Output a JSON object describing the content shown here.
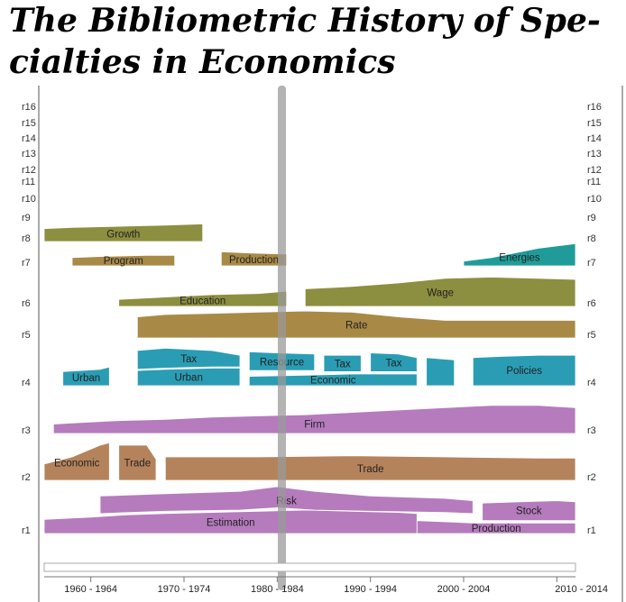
{
  "title": "The Bibliometric History of Specialties in Economics",
  "title_lines": [
    "The Bibliometric History of Spe-",
    "cialties in Economics"
  ],
  "colors": {
    "purple": "#b57bbd",
    "brown": "#b5835b",
    "olive": "#8c8f3f",
    "teal": "#2a9db4",
    "tealdark": "#1f9c9a",
    "green": "#4f9a57",
    "pink": "#c06fae",
    "gold": "#a88946",
    "axis": "#777777",
    "slider": "#999999"
  },
  "chart_data": {
    "type": "area",
    "xlabel": "",
    "ylabel": "",
    "x_ticks": [
      "1960 - 1964",
      "1970 - 1974",
      "1980 - 1984",
      "1990 - 1994",
      "2000 - 2004",
      "2010 - 2014"
    ],
    "x_range": [
      1957,
      2014
    ],
    "selected_period": "1980 - 1984",
    "row_labels": [
      "r1",
      "r2",
      "r3",
      "r4",
      "r5",
      "r6",
      "r7",
      "r8",
      "r9",
      "r10",
      "r11",
      "r12",
      "r13",
      "r14",
      "r15",
      "r16"
    ],
    "series": [
      {
        "row": "r1",
        "name": "Estimation",
        "color": "purple",
        "x": [
          1957,
          1962,
          1966,
          1970,
          1975,
          1980,
          1985,
          1990,
          1995,
          1997
        ],
        "top": [
          0.6,
          0.7,
          0.8,
          0.85,
          0.9,
          0.95,
          1.0,
          0.95,
          0.9,
          0.85
        ],
        "bottom": [
          0,
          0,
          0,
          0,
          0,
          0,
          0,
          0,
          0,
          0
        ]
      },
      {
        "row": "r1",
        "name": "Risk",
        "color": "purple",
        "x": [
          1963,
          1970,
          1978,
          1982,
          1986,
          1992,
          2000,
          2003
        ],
        "top": [
          1.6,
          1.7,
          1.8,
          2.0,
          1.8,
          1.6,
          1.5,
          1.4
        ],
        "bottom": [
          0.85,
          0.95,
          1.0,
          1.1,
          1.0,
          0.95,
          0.9,
          0.85
        ]
      },
      {
        "row": "r1",
        "name": "Production",
        "color": "purple",
        "x": [
          1997,
          2000,
          2003,
          2010,
          2014
        ],
        "top": [
          0.55,
          0.5,
          0.45,
          0.45,
          0.45
        ],
        "bottom": [
          0.0,
          0.0,
          0.0,
          0.0,
          0.0
        ]
      },
      {
        "row": "r1",
        "name": "Stock",
        "color": "purple",
        "x": [
          2004,
          2008,
          2012,
          2014
        ],
        "top": [
          1.3,
          1.35,
          1.4,
          1.35
        ],
        "bottom": [
          0.55,
          0.55,
          0.55,
          0.55
        ]
      },
      {
        "row": "r2",
        "name": "Economic",
        "color": "brown",
        "x": [
          1957,
          1960,
          1963,
          1964
        ],
        "top": [
          0.7,
          1.0,
          1.5,
          1.6
        ],
        "bottom": [
          0,
          0,
          0,
          0
        ]
      },
      {
        "row": "r2",
        "name": "Trade",
        "color": "brown",
        "x": [
          1965,
          1968,
          1969
        ],
        "top": [
          1.5,
          1.5,
          0.9
        ],
        "bottom": [
          0,
          0,
          0
        ]
      },
      {
        "row": "r2",
        "name": "Trade",
        "color": "brown",
        "x": [
          1970,
          1980,
          1990,
          2000,
          2010,
          2014
        ],
        "top": [
          1.0,
          1.0,
          1.05,
          1.0,
          0.95,
          0.95
        ],
        "bottom": [
          0,
          0,
          0,
          0,
          0,
          0
        ]
      },
      {
        "row": "r3",
        "name": "Firm",
        "color": "purple",
        "x": [
          1958,
          1960,
          1965,
          1970,
          1975,
          1980,
          1985,
          1990,
          1995,
          2000,
          2005,
          2010,
          2014
        ],
        "top": [
          0.4,
          0.45,
          0.55,
          0.6,
          0.7,
          0.75,
          0.8,
          0.9,
          1.0,
          1.1,
          1.2,
          1.2,
          1.1
        ],
        "bottom": [
          0,
          0,
          0,
          0,
          0,
          0,
          0,
          0,
          0,
          0,
          0,
          0,
          0
        ]
      },
      {
        "row": "r4",
        "name": "Urban",
        "color": "teal",
        "x": [
          1959,
          1963,
          1964
        ],
        "top": [
          0.6,
          0.7,
          0.8
        ],
        "bottom": [
          0,
          0,
          0
        ]
      },
      {
        "row": "r4",
        "name": "Tax",
        "color": "teal",
        "x": [
          1967,
          1970,
          1975,
          1978
        ],
        "top": [
          1.5,
          1.6,
          1.5,
          1.3
        ],
        "bottom": [
          0.7,
          0.75,
          0.8,
          0.8
        ]
      },
      {
        "row": "r4",
        "name": "Urban",
        "color": "teal",
        "x": [
          1967,
          1970,
          1975,
          1978
        ],
        "top": [
          0.65,
          0.7,
          0.75,
          0.75
        ],
        "bottom": [
          0,
          0,
          0,
          0
        ]
      },
      {
        "row": "r4",
        "name": "Resource",
        "color": "teal",
        "x": [
          1979,
          1982,
          1986
        ],
        "top": [
          1.45,
          1.4,
          1.35
        ],
        "bottom": [
          0.65,
          0.65,
          0.65
        ]
      },
      {
        "row": "r4",
        "name": "Economic",
        "color": "teal",
        "x": [
          1979,
          1985,
          1990,
          1995,
          1997
        ],
        "top": [
          0.4,
          0.45,
          0.5,
          0.5,
          0.5
        ],
        "bottom": [
          0,
          0,
          0,
          0,
          0
        ]
      },
      {
        "row": "r4",
        "name": "Tax",
        "color": "teal",
        "x": [
          1987,
          1991
        ],
        "top": [
          1.3,
          1.3
        ],
        "bottom": [
          0.6,
          0.6
        ]
      },
      {
        "row": "r4",
        "name": "Tax",
        "color": "teal",
        "x": [
          1992,
          1995,
          1997
        ],
        "top": [
          1.4,
          1.35,
          1.2
        ],
        "bottom": [
          0.6,
          0.6,
          0.6
        ]
      },
      {
        "row": "r4",
        "name": "",
        "color": "teal",
        "x": [
          1998,
          2001
        ],
        "top": [
          1.2,
          1.1
        ],
        "bottom": [
          0,
          0
        ]
      },
      {
        "row": "r4",
        "name": "Policies",
        "color": "teal",
        "x": [
          2003,
          2006,
          2010,
          2014
        ],
        "top": [
          1.2,
          1.25,
          1.3,
          1.3
        ],
        "bottom": [
          0,
          0,
          0,
          0
        ]
      },
      {
        "row": "r5",
        "name": "Rate",
        "color": "gold",
        "x": [
          1967,
          1970,
          1975,
          1980,
          1985,
          1990,
          1995,
          2000,
          2005,
          2010,
          2014
        ],
        "top": [
          0.9,
          1.0,
          1.05,
          1.1,
          1.15,
          1.1,
          0.9,
          0.75,
          0.75,
          0.75,
          0.75
        ],
        "bottom": [
          0,
          0,
          0,
          0,
          0,
          0,
          0,
          0,
          0,
          0,
          0
        ]
      },
      {
        "row": "r6",
        "name": "Education",
        "color": "olive",
        "x": [
          1965,
          1970,
          1975,
          1980,
          1983
        ],
        "top": [
          0.3,
          0.4,
          0.5,
          0.55,
          0.65
        ],
        "bottom": [
          0,
          0,
          0,
          0,
          0
        ]
      },
      {
        "row": "r6",
        "name": "Wage",
        "color": "olive",
        "x": [
          1985,
          1990,
          1995,
          2000,
          2005,
          2010,
          2014
        ],
        "top": [
          0.75,
          0.85,
          1.0,
          1.2,
          1.25,
          1.2,
          1.15
        ],
        "bottom": [
          0,
          0,
          0,
          0,
          0,
          0,
          0
        ]
      },
      {
        "row": "r7",
        "name": "Program",
        "color": "gold",
        "x": [
          1960,
          1963,
          1968,
          1971
        ],
        "top": [
          0.35,
          0.4,
          0.45,
          0.45
        ],
        "bottom": [
          0,
          0,
          0,
          0
        ]
      },
      {
        "row": "r7",
        "name": "Production",
        "color": "gold",
        "x": [
          1976,
          1979,
          1983
        ],
        "top": [
          0.6,
          0.55,
          0.5
        ],
        "bottom": [
          0,
          0,
          0
        ]
      },
      {
        "row": "r7",
        "name": "Energies",
        "color": "tealdark",
        "x": [
          2002,
          2005,
          2010,
          2014
        ],
        "top": [
          0.2,
          0.35,
          0.75,
          0.95
        ],
        "bottom": [
          0,
          0,
          0,
          0
        ]
      },
      {
        "row": "r8",
        "name": "Growth",
        "color": "olive",
        "x": [
          1957,
          1960,
          1965,
          1970,
          1974
        ],
        "top": [
          0.55,
          0.6,
          0.65,
          0.7,
          0.75
        ],
        "bottom": [
          0,
          0,
          0,
          0,
          0
        ]
      }
    ]
  }
}
